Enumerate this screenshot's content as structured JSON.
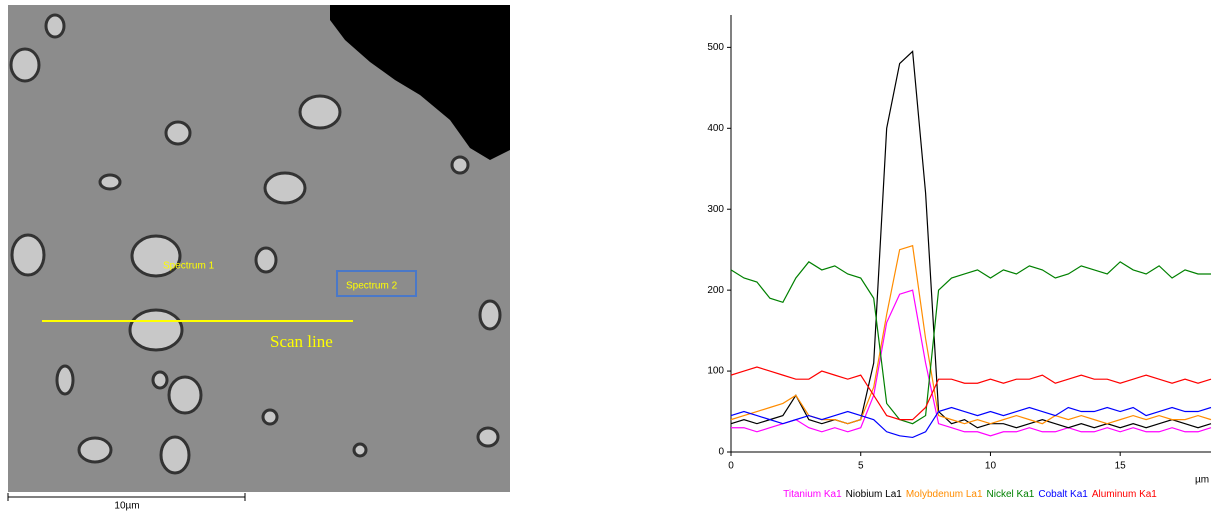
{
  "image": {
    "spectrum_1": "Spectrum 1",
    "spectrum_2": "Spectrum 2",
    "scan_line": "Scan line",
    "scale_bar": "10µm"
  },
  "chart_data": {
    "type": "line",
    "xlabel": "µm",
    "x": [
      0,
      0.5,
      1,
      1.5,
      2,
      2.5,
      3,
      3.5,
      4,
      4.5,
      5,
      5.5,
      6,
      6.5,
      7,
      7.5,
      8,
      8.5,
      9,
      9.5,
      10,
      10.5,
      11,
      11.5,
      12,
      12.5,
      13,
      13.5,
      14,
      14.5,
      15,
      15.5,
      16,
      16.5,
      17,
      17.5,
      18,
      18.5
    ],
    "xlim": [
      0,
      18.5
    ],
    "xticks": [
      0,
      5,
      10,
      15
    ],
    "ylim": [
      0,
      540
    ],
    "yticks": [
      0,
      100,
      200,
      300,
      400,
      500
    ],
    "series": [
      {
        "name": "Titanium Ka1",
        "color": "#ff00ff",
        "values": [
          30,
          30,
          25,
          30,
          35,
          40,
          30,
          25,
          30,
          25,
          30,
          70,
          160,
          195,
          200,
          110,
          35,
          30,
          25,
          25,
          20,
          25,
          25,
          30,
          25,
          25,
          30,
          25,
          25,
          30,
          25,
          30,
          25,
          25,
          30,
          25,
          25,
          30
        ]
      },
      {
        "name": "Niobium La1",
        "color": "#000000",
        "values": [
          35,
          40,
          35,
          40,
          45,
          70,
          40,
          35,
          40,
          35,
          40,
          110,
          400,
          480,
          495,
          320,
          50,
          35,
          40,
          30,
          35,
          35,
          30,
          35,
          40,
          35,
          30,
          35,
          30,
          35,
          30,
          35,
          30,
          35,
          40,
          35,
          30,
          35
        ]
      },
      {
        "name": "Molybdenum La1",
        "color": "#ff8c00",
        "values": [
          40,
          45,
          50,
          55,
          60,
          70,
          45,
          40,
          40,
          35,
          40,
          80,
          170,
          250,
          255,
          140,
          45,
          40,
          35,
          40,
          35,
          40,
          45,
          40,
          35,
          45,
          40,
          45,
          40,
          35,
          40,
          45,
          40,
          45,
          40,
          40,
          45,
          40
        ]
      },
      {
        "name": "Nickel Ka1",
        "color": "#008000",
        "values": [
          225,
          215,
          210,
          190,
          185,
          215,
          235,
          225,
          230,
          220,
          215,
          190,
          60,
          40,
          35,
          45,
          200,
          215,
          220,
          225,
          215,
          225,
          220,
          230,
          225,
          215,
          220,
          230,
          225,
          220,
          235,
          225,
          220,
          230,
          215,
          225,
          220,
          220
        ]
      },
      {
        "name": "Cobalt Ka1",
        "color": "#0000ff",
        "values": [
          45,
          50,
          45,
          40,
          35,
          40,
          45,
          40,
          45,
          50,
          45,
          40,
          25,
          20,
          18,
          25,
          50,
          55,
          50,
          45,
          50,
          45,
          50,
          55,
          50,
          45,
          55,
          50,
          50,
          55,
          50,
          55,
          45,
          50,
          55,
          50,
          50,
          55
        ]
      },
      {
        "name": "Aluminum Ka1",
        "color": "#ff0000",
        "values": [
          95,
          100,
          105,
          100,
          95,
          90,
          90,
          100,
          95,
          90,
          95,
          70,
          45,
          40,
          40,
          55,
          90,
          90,
          85,
          85,
          90,
          85,
          90,
          90,
          95,
          85,
          90,
          95,
          90,
          90,
          85,
          90,
          95,
          90,
          85,
          90,
          85,
          90
        ]
      }
    ]
  }
}
